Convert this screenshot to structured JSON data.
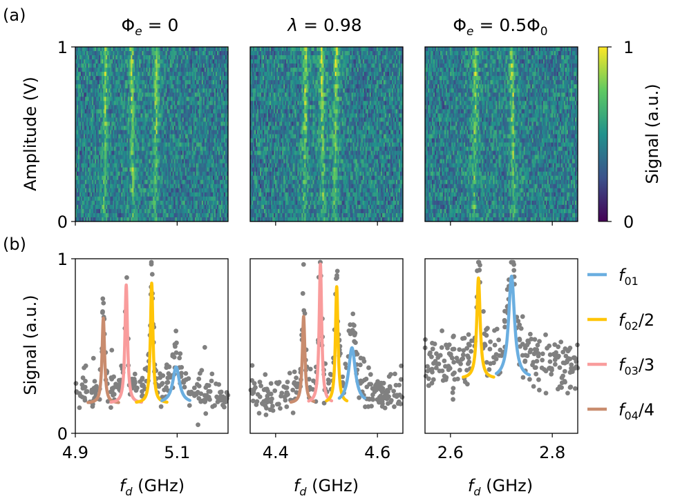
{
  "figure": {
    "label_a": "(a)",
    "label_b": "(b)"
  },
  "colorbar": {
    "ylabel": "Signal (a.u.)",
    "tick_max": "1",
    "tick_min": "0",
    "colors": [
      "#440154",
      "#3b528b",
      "#21918c",
      "#5ec962",
      "#fde725"
    ]
  },
  "legend": {
    "entries": [
      {
        "base": "f",
        "sub": "01",
        "suffix": "",
        "color": "#6aaee0"
      },
      {
        "base": "f",
        "sub": "02",
        "suffix": "/2",
        "color": "#ffc508"
      },
      {
        "base": "f",
        "sub": "03",
        "suffix": "/3",
        "color": "#f99c9c"
      },
      {
        "base": "f",
        "sub": "04",
        "suffix": "/4",
        "color": "#c98c6e"
      }
    ]
  },
  "chart_data": [
    {
      "type": "heatmap",
      "panel": "a1",
      "title": {
        "main": "Φ",
        "sub": "e",
        "rest": " = 0"
      },
      "ylabel": "Amplitude (V)",
      "yticks": [
        "0",
        "1"
      ],
      "ylim": [
        0,
        1
      ],
      "xlim": [
        4.9,
        5.2
      ],
      "bright_lines_ghz": [
        4.96,
        5.01,
        5.06
      ],
      "value_range": [
        0,
        1
      ]
    },
    {
      "type": "heatmap",
      "panel": "a2",
      "title": {
        "main": "λ",
        "sub": "",
        "rest": " = 0.98"
      },
      "xlim": [
        4.35,
        4.65
      ],
      "bright_lines_ghz": [
        4.46,
        4.49,
        4.52
      ],
      "value_range": [
        0,
        1
      ]
    },
    {
      "type": "heatmap",
      "panel": "a3",
      "title": {
        "main": "Φ",
        "sub": "e",
        "rest": " = 0.5Φ",
        "sub2": "0"
      },
      "xlim": [
        2.55,
        2.85
      ],
      "bright_lines_ghz": [
        2.65,
        2.72
      ],
      "value_range": [
        0,
        1
      ]
    },
    {
      "type": "scatter",
      "panel": "b1",
      "ylabel": "Signal (a.u.)",
      "xlabel": {
        "base": "f",
        "sub": "d",
        "rest": " (GHz)"
      },
      "xlim": [
        4.9,
        5.2
      ],
      "ylim": [
        0,
        1
      ],
      "xticks": [
        {
          "v": 4.9,
          "label": "4.9"
        },
        {
          "v": 5.1,
          "label": "5.1"
        }
      ],
      "yticks": [
        {
          "v": 0,
          "label": "0"
        },
        {
          "v": 1,
          "label": "1"
        }
      ],
      "baseline": 0.22,
      "noise": 0.06,
      "n_points": 250,
      "fits": [
        {
          "series": "f04/4",
          "center": 4.955,
          "height": 0.66,
          "width": 0.003,
          "range": [
            4.925,
            4.985
          ],
          "color": "#c98c6e"
        },
        {
          "series": "f03/3",
          "center": 5.0,
          "height": 0.85,
          "width": 0.003,
          "range": [
            4.97,
            5.03
          ],
          "color": "#f99c9c"
        },
        {
          "series": "f02/2",
          "center": 5.05,
          "height": 0.86,
          "width": 0.003,
          "range": [
            5.02,
            5.08
          ],
          "color": "#ffc508"
        },
        {
          "series": "f01",
          "center": 5.098,
          "height": 0.38,
          "width": 0.008,
          "range": [
            5.07,
            5.125
          ],
          "color": "#6aaee0"
        }
      ]
    },
    {
      "type": "scatter",
      "panel": "b2",
      "xlabel": {
        "base": "f",
        "sub": "d",
        "rest": " (GHz)"
      },
      "xlim": [
        4.35,
        4.65
      ],
      "ylim": [
        0,
        1
      ],
      "xticks": [
        {
          "v": 4.4,
          "label": "4.4"
        },
        {
          "v": 4.6,
          "label": "4.6"
        }
      ],
      "baseline": 0.22,
      "noise": 0.07,
      "n_points": 260,
      "fits": [
        {
          "series": "f04/4",
          "center": 4.455,
          "height": 0.67,
          "width": 0.003,
          "range": [
            4.43,
            4.475
          ],
          "color": "#c98c6e"
        },
        {
          "series": "f03/3",
          "center": 4.488,
          "height": 0.97,
          "width": 0.003,
          "range": [
            4.465,
            4.51
          ],
          "color": "#f99c9c"
        },
        {
          "series": "f02/2",
          "center": 4.52,
          "height": 0.84,
          "width": 0.003,
          "range": [
            4.5,
            4.54
          ],
          "color": "#ffc508"
        },
        {
          "series": "f01",
          "center": 4.55,
          "height": 0.49,
          "width": 0.008,
          "range": [
            4.525,
            4.575
          ],
          "color": "#6aaee0"
        }
      ]
    },
    {
      "type": "scatter",
      "panel": "b3",
      "xlabel": {
        "base": "f",
        "sub": "d",
        "rest": " (GHz)"
      },
      "xlim": [
        2.55,
        2.85
      ],
      "ylim": [
        0,
        1
      ],
      "xticks": [
        {
          "v": 2.6,
          "label": "2.6"
        },
        {
          "v": 2.8,
          "label": "2.8"
        }
      ],
      "baseline": 0.4,
      "noise": 0.1,
      "n_points": 260,
      "fits": [
        {
          "series": "f02/2",
          "center": 2.655,
          "height": 0.89,
          "width": 0.004,
          "range": [
            2.625,
            2.685
          ],
          "color": "#ffc508"
        },
        {
          "series": "f01",
          "center": 2.72,
          "height": 0.9,
          "width": 0.007,
          "range": [
            2.69,
            2.755
          ],
          "color": "#6aaee0"
        }
      ]
    }
  ]
}
